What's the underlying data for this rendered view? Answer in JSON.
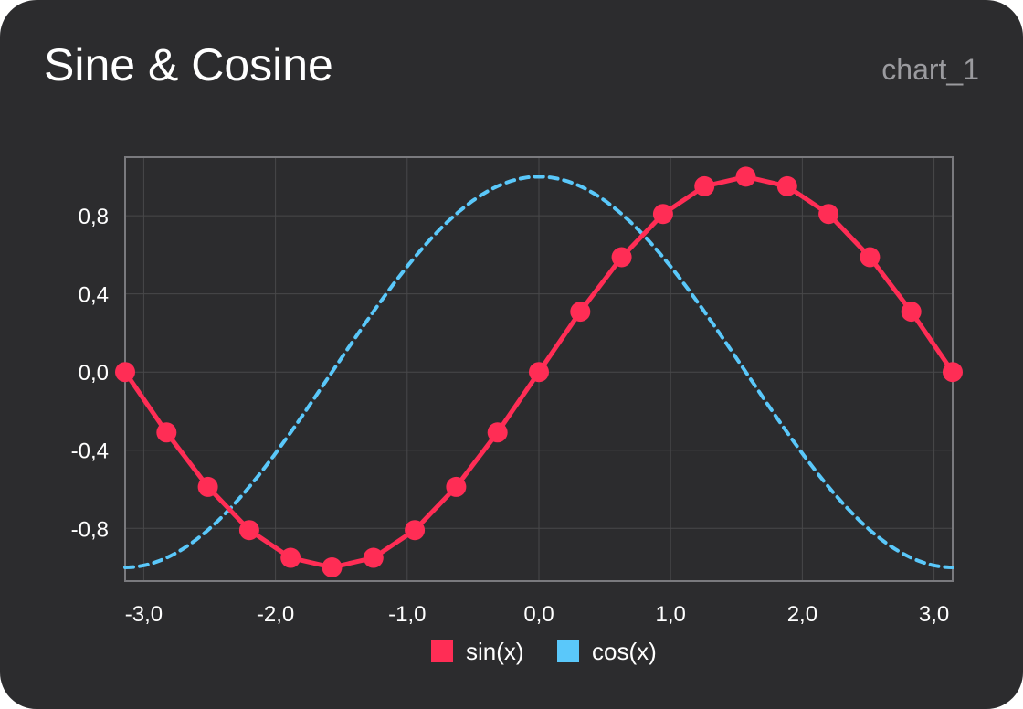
{
  "header": {
    "title": "Sine & Cosine",
    "chart_id": "chart_1"
  },
  "colors": {
    "background": "#2c2c2e",
    "grid": "#48484a",
    "frame": "#7a7a7e",
    "sin": "#ff2d55",
    "cos": "#5ac8fa"
  },
  "chart_data": {
    "type": "line",
    "title": "Sine & Cosine",
    "xlabel": "",
    "ylabel": "",
    "xlim": [
      -3.1416,
      3.1416
    ],
    "ylim": [
      -1.07,
      1.1
    ],
    "x_ticks": [
      -3.0,
      -2.0,
      -1.0,
      0.0,
      1.0,
      2.0,
      3.0
    ],
    "x_tick_labels": [
      "-3,0",
      "-2,0",
      "-1,0",
      "0,0",
      "1,0",
      "2,0",
      "3,0"
    ],
    "y_ticks": [
      -0.8,
      -0.4,
      0.0,
      0.4,
      0.8
    ],
    "y_tick_labels": [
      "-0,8",
      "-0,4",
      "0,0",
      "0,4",
      "0,8"
    ],
    "grid": true,
    "legend": "bottom-center",
    "x": [
      -3.1416,
      -2.8274,
      -2.5133,
      -2.1991,
      -1.885,
      -1.5708,
      -1.2566,
      -0.9425,
      -0.6283,
      -0.3142,
      0.0,
      0.3142,
      0.6283,
      0.9425,
      1.2566,
      1.5708,
      1.885,
      2.1991,
      2.5133,
      2.8274,
      3.1416
    ],
    "series": [
      {
        "name": "sin(x)",
        "style": "solid with markers",
        "values": [
          0.0,
          -0.309,
          -0.588,
          -0.809,
          -0.951,
          -1.0,
          -0.951,
          -0.809,
          -0.588,
          -0.309,
          0.0,
          0.309,
          0.588,
          0.809,
          0.951,
          1.0,
          0.951,
          0.809,
          0.588,
          0.309,
          0.0
        ]
      },
      {
        "name": "cos(x)",
        "style": "dashed",
        "values": [
          -1.0,
          -0.951,
          -0.809,
          -0.588,
          -0.309,
          0.0,
          0.309,
          0.588,
          0.809,
          0.951,
          1.0,
          0.951,
          0.809,
          0.588,
          0.309,
          0.0,
          -0.309,
          -0.588,
          -0.809,
          -0.951,
          -1.0
        ]
      }
    ]
  }
}
